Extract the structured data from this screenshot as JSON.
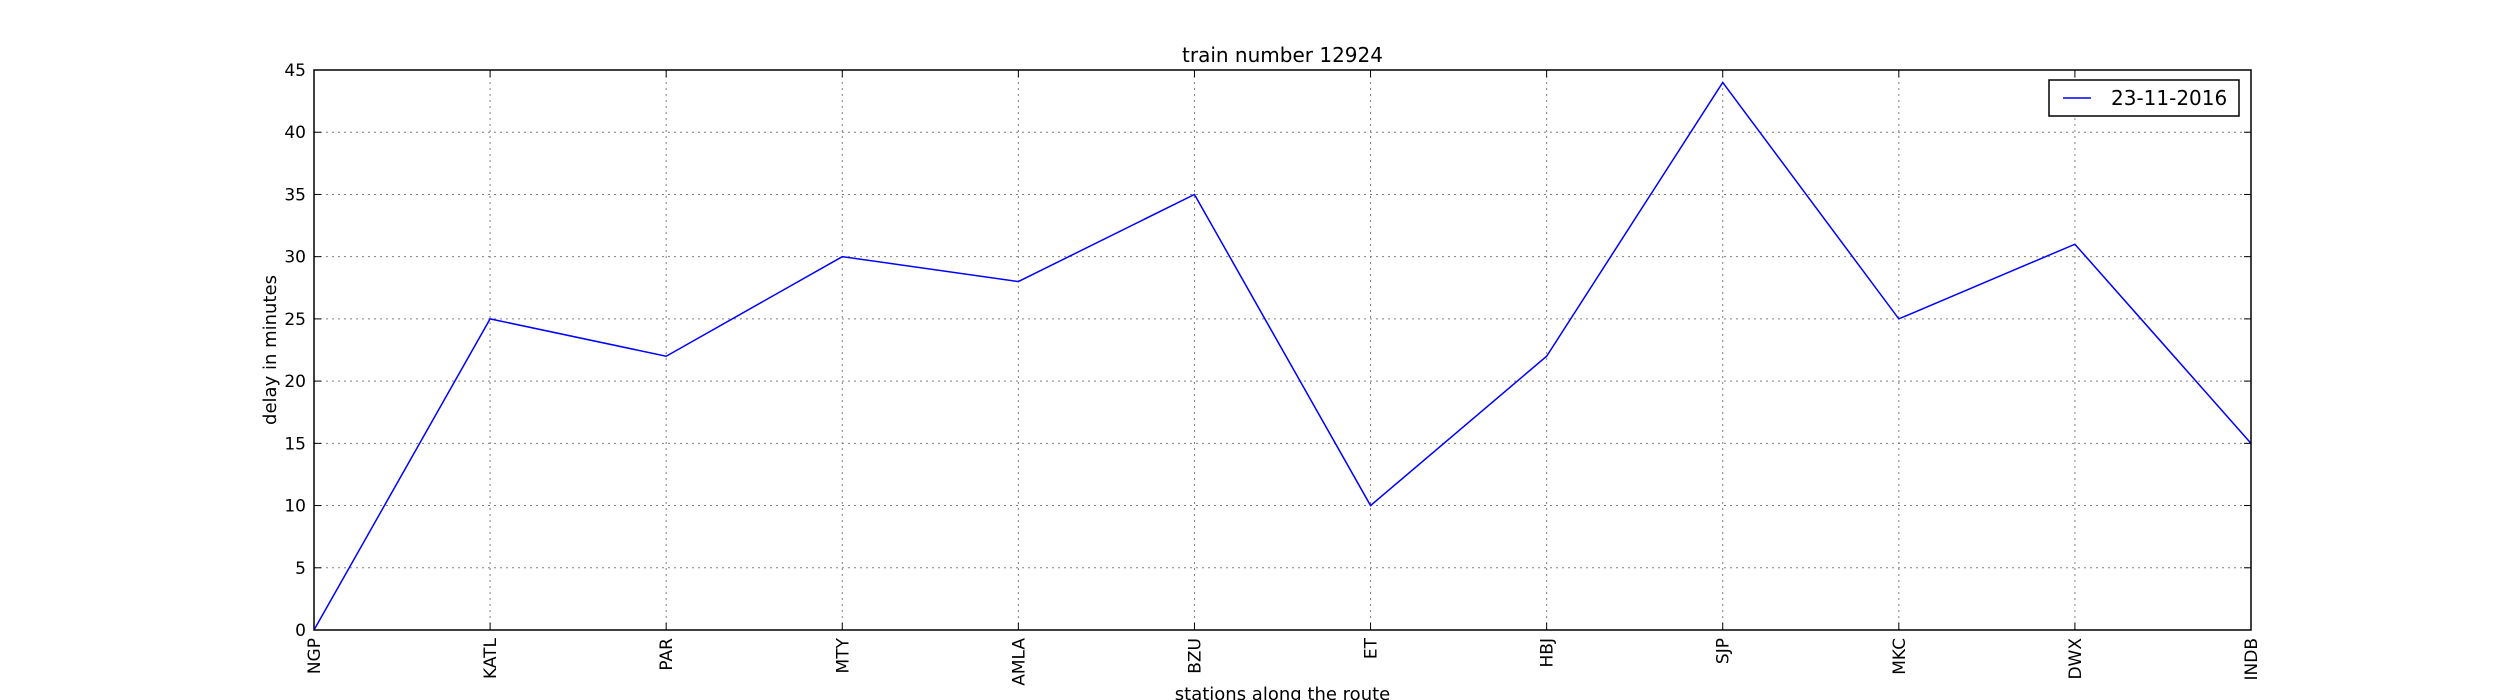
{
  "chart_data": {
    "type": "line",
    "title": "train number 12924",
    "xlabel": "stations along the route",
    "ylabel": "delay in minutes",
    "categories": [
      "NGP",
      "KATL",
      "PAR",
      "MTY",
      "AMLA",
      "BZU",
      "ET",
      "HBJ",
      "SJP",
      "MKC",
      "DWX",
      "INDB"
    ],
    "series": [
      {
        "name": "23-11-2016",
        "values": [
          0,
          25,
          22,
          30,
          28,
          35,
          10,
          22,
          44,
          25,
          31,
          15
        ],
        "color": "#0000ff"
      }
    ],
    "ylim": [
      0,
      45
    ],
    "yticks": [
      0,
      5,
      10,
      15,
      20,
      25,
      30,
      35,
      40,
      45
    ],
    "grid": true,
    "legend_position": "top-right"
  }
}
